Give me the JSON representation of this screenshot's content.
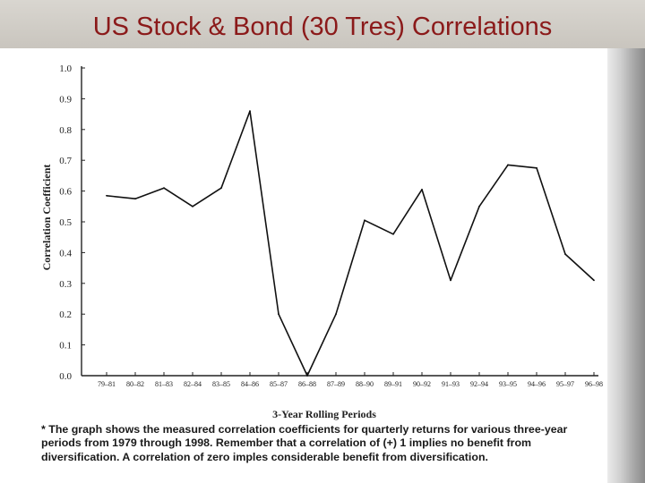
{
  "slide": {
    "title": "US Stock & Bond (30 Tres) Correlations",
    "footnote": "* The graph shows the measured correlation coefficients for quarterly returns for various three-year periods from 1979 through 1998. Remember that a correlation of (+) 1 implies no benefit from diversification. A correlation of zero imples considerable benefit from diversification."
  },
  "chart_data": {
    "type": "line",
    "title": "",
    "xlabel": "3-Year Rolling Periods",
    "ylabel": "Correlation Coefficient",
    "ylim": [
      0.0,
      1.0
    ],
    "yticks": [
      "0.0",
      "0.1",
      "0.2",
      "0.3",
      "0.4",
      "0.5",
      "0.6",
      "0.7",
      "0.8",
      "0.9",
      "1.0"
    ],
    "grid": false,
    "categories": [
      "79–81",
      "80–82",
      "81–83",
      "82–84",
      "83–85",
      "84–86",
      "85–87",
      "86–88",
      "87–89",
      "88–90",
      "89–91",
      "90–92",
      "91–93",
      "92–94",
      "93–95",
      "94–96",
      "95–97",
      "96–98"
    ],
    "series": [
      {
        "values": [
          0.585,
          0.575,
          0.61,
          0.55,
          0.61,
          0.86,
          0.2,
          0.0,
          0.2,
          0.505,
          0.46,
          0.605,
          0.31,
          0.55,
          0.685,
          0.675,
          0.395,
          0.31
        ]
      }
    ],
    "line_color": "#111111"
  }
}
